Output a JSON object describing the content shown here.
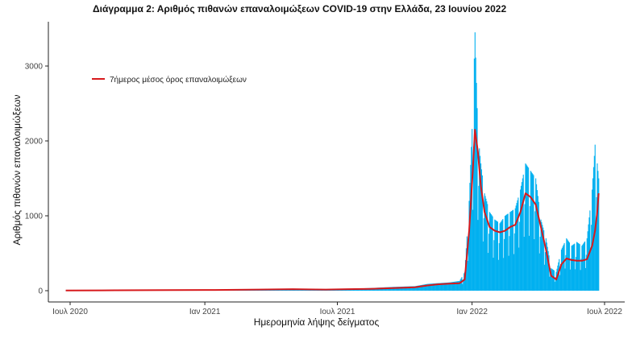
{
  "title": "Διάγραμμα 2: Αριθμός πιθανών επαναλοιμώξεων COVID-19 στην Ελλάδα, 23 Ιουνίου 2022",
  "chart_data": {
    "type": "bar",
    "title": "Διάγραμμα 2: Αριθμός πιθανών επαναλοιμώξεων COVID-19 στην Ελλάδα, 23 Ιουνίου 2022",
    "xlabel": "Ημερομηνία λήψης δείγματος",
    "ylabel": "Αριθμός πιθανών επαναλοιμώξεων",
    "ylim": [
      0,
      3500
    ],
    "yticks": [
      0,
      1000,
      2000,
      3000
    ],
    "xrange": [
      "2020-06-20",
      "2022-06-23"
    ],
    "xticks": [
      {
        "date": "2020-07-01",
        "label": "Ιουλ 2020"
      },
      {
        "date": "2021-01-01",
        "label": "Ιαν 2021"
      },
      {
        "date": "2021-07-01",
        "label": "Ιουλ 2021"
      },
      {
        "date": "2022-01-01",
        "label": "Ιαν 2022"
      },
      {
        "date": "2022-07-01",
        "label": "Ιουλ 2022"
      }
    ],
    "grid": false,
    "legend": {
      "position": "top-left",
      "entries": [
        {
          "label": "7ήμερος μέσος όρος επαναλοιμώξεων",
          "color": "#d7191c"
        }
      ]
    },
    "colors": {
      "bars": "#00b0f0",
      "line": "#d7191c"
    },
    "series": [
      {
        "type": "bar",
        "x": [
          "2020-06-25",
          "2020-09-01",
          "2020-11-15",
          "2021-01-15",
          "2021-03-15",
          "2021-05-01",
          "2021-06-15",
          "2021-07-15",
          "2021-08-15",
          "2021-09-15",
          "2021-10-15",
          "2021-11-01",
          "2021-11-15",
          "2021-12-01",
          "2021-12-15",
          "2021-12-22",
          "2021-12-28",
          "2022-01-02",
          "2022-01-05",
          "2022-01-09",
          "2022-01-13",
          "2022-01-18",
          "2022-01-25",
          "2022-02-01",
          "2022-02-08",
          "2022-02-15",
          "2022-02-22",
          "2022-03-01",
          "2022-03-08",
          "2022-03-15",
          "2022-03-22",
          "2022-03-29",
          "2022-04-05",
          "2022-04-12",
          "2022-04-19",
          "2022-04-26",
          "2022-05-03",
          "2022-05-10",
          "2022-05-17",
          "2022-05-24",
          "2022-05-31",
          "2022-06-07",
          "2022-06-14",
          "2022-06-18",
          "2022-06-21",
          "2022-06-23"
        ],
        "values": [
          2,
          5,
          8,
          10,
          20,
          25,
          15,
          25,
          35,
          50,
          60,
          90,
          100,
          110,
          130,
          250,
          1200,
          2400,
          3450,
          2100,
          1700,
          1300,
          1050,
          950,
          900,
          1000,
          1050,
          1100,
          1350,
          1700,
          1600,
          1500,
          950,
          700,
          300,
          250,
          550,
          700,
          600,
          650,
          600,
          700,
          1350,
          1950,
          1700,
          1500
        ]
      },
      {
        "type": "line",
        "name": "7ήμερος μέσος όρος επαναλοιμώξεων",
        "x": [
          "2020-06-25",
          "2020-09-01",
          "2020-11-15",
          "2021-01-15",
          "2021-03-15",
          "2021-05-01",
          "2021-06-15",
          "2021-07-15",
          "2021-08-15",
          "2021-09-15",
          "2021-10-15",
          "2021-11-01",
          "2021-11-15",
          "2021-12-01",
          "2021-12-15",
          "2021-12-22",
          "2021-12-28",
          "2022-01-02",
          "2022-01-05",
          "2022-01-09",
          "2022-01-13",
          "2022-01-18",
          "2022-01-25",
          "2022-02-01",
          "2022-02-08",
          "2022-02-15",
          "2022-02-22",
          "2022-03-01",
          "2022-03-08",
          "2022-03-15",
          "2022-03-22",
          "2022-03-29",
          "2022-04-05",
          "2022-04-12",
          "2022-04-19",
          "2022-04-26",
          "2022-05-03",
          "2022-05-10",
          "2022-05-17",
          "2022-05-24",
          "2022-05-31",
          "2022-06-07",
          "2022-06-14",
          "2022-06-18",
          "2022-06-21",
          "2022-06-23"
        ],
        "values": [
          2,
          5,
          8,
          10,
          15,
          20,
          15,
          20,
          25,
          35,
          45,
          70,
          85,
          95,
          100,
          150,
          800,
          1600,
          2150,
          1850,
          1400,
          1050,
          850,
          800,
          780,
          800,
          850,
          880,
          1050,
          1300,
          1250,
          1150,
          850,
          550,
          200,
          150,
          350,
          430,
          410,
          400,
          400,
          420,
          600,
          800,
          1050,
          1300
        ]
      }
    ]
  }
}
